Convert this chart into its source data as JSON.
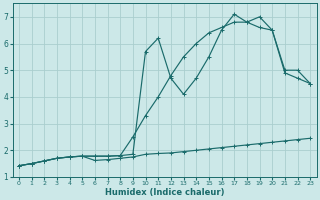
{
  "xlabel": "Humidex (Indice chaleur)",
  "bg_color": "#cce8e8",
  "grid_color": "#aacece",
  "line_color": "#1a6b6b",
  "xlim": [
    -0.5,
    23.5
  ],
  "ylim": [
    1,
    7.5
  ],
  "xticks": [
    0,
    1,
    2,
    3,
    4,
    5,
    6,
    7,
    8,
    9,
    10,
    11,
    12,
    13,
    14,
    15,
    16,
    17,
    18,
    19,
    20,
    21,
    22,
    23
  ],
  "yticks": [
    1,
    2,
    3,
    4,
    5,
    6,
    7
  ],
  "line1_x": [
    0,
    1,
    2,
    3,
    4,
    5,
    6,
    7,
    8,
    9,
    10,
    11,
    12,
    13,
    14,
    15,
    16,
    17,
    18,
    19,
    20,
    21,
    22,
    23
  ],
  "line1_y": [
    1.42,
    1.5,
    1.6,
    1.7,
    1.75,
    1.78,
    1.62,
    1.65,
    1.7,
    1.75,
    1.85,
    1.88,
    1.9,
    1.95,
    2.0,
    2.05,
    2.1,
    2.15,
    2.2,
    2.25,
    2.3,
    2.35,
    2.4,
    2.45
  ],
  "line2_x": [
    0,
    1,
    2,
    3,
    4,
    5,
    6,
    7,
    8,
    9,
    10,
    11,
    12,
    13,
    14,
    15,
    16,
    17,
    18,
    19,
    20,
    21,
    22,
    23
  ],
  "line2_y": [
    1.42,
    1.5,
    1.6,
    1.7,
    1.75,
    1.78,
    1.78,
    1.78,
    1.8,
    1.85,
    5.7,
    6.2,
    4.7,
    4.1,
    4.7,
    5.5,
    6.5,
    7.1,
    6.8,
    7.0,
    6.5,
    5.0,
    5.0,
    4.5
  ],
  "line3_x": [
    0,
    1,
    2,
    3,
    4,
    5,
    6,
    7,
    8,
    9,
    10,
    11,
    12,
    13,
    14,
    15,
    16,
    17,
    18,
    19,
    20,
    21,
    22,
    23
  ],
  "line3_y": [
    1.42,
    1.5,
    1.6,
    1.7,
    1.75,
    1.78,
    1.78,
    1.78,
    1.8,
    2.5,
    3.3,
    4.0,
    4.8,
    5.5,
    6.0,
    6.4,
    6.6,
    6.8,
    6.8,
    6.6,
    6.5,
    4.9,
    4.7,
    4.5
  ]
}
